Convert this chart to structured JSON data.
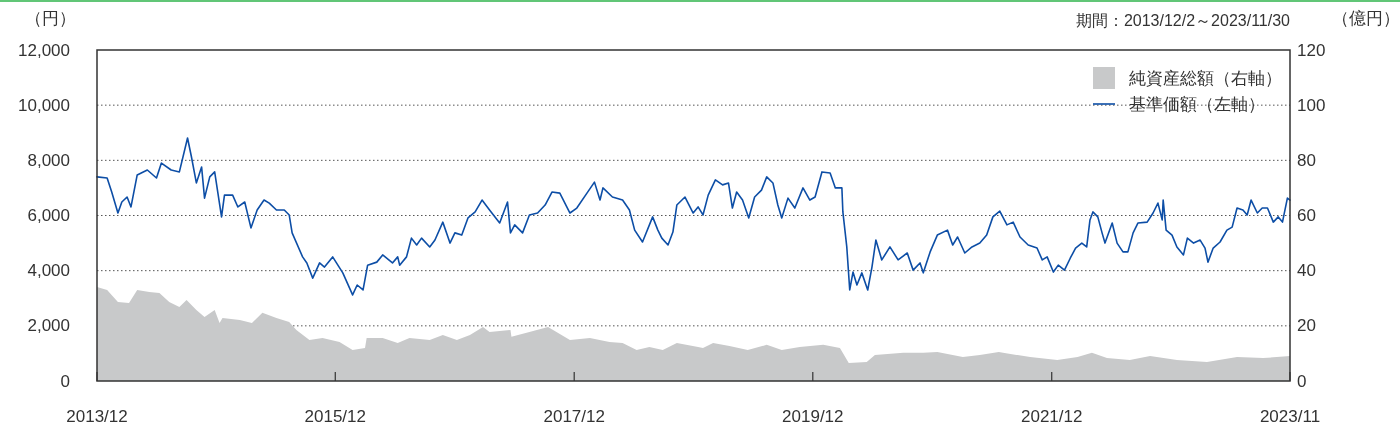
{
  "chart_data": {
    "type": "line",
    "ylabel": "（円）",
    "y2label": "（億円）",
    "annotations": [
      "期間：2013/12/2～2023/11/30"
    ],
    "xlim": [
      "2013-12-02",
      "2023-11-30"
    ],
    "xticks": [
      {
        "value": "2013-12-02",
        "label": "2013/12"
      },
      {
        "value": "2015-12-01",
        "label": "2015/12"
      },
      {
        "value": "2017-12-01",
        "label": "2017/12"
      },
      {
        "value": "2019-12-01",
        "label": "2019/12"
      },
      {
        "value": "2021-12-01",
        "label": "2021/12"
      },
      {
        "value": "2023-11-30",
        "label": "2023/11"
      }
    ],
    "ylim": [
      0,
      12000
    ],
    "yticks": [
      0,
      {
        "value": 2000,
        "label": "2,000"
      },
      {
        "value": 4000,
        "label": "4,000"
      },
      {
        "value": 6000,
        "label": "6,000"
      },
      {
        "value": 8000,
        "label": "8,000"
      },
      {
        "value": 10000,
        "label": "10,000"
      },
      {
        "value": 12000,
        "label": "12,000"
      }
    ],
    "y2lim": [
      0,
      120
    ],
    "y2ticks": [
      0,
      20,
      40,
      60,
      80,
      100,
      120
    ],
    "grid": "y",
    "legend": "top right",
    "series": [
      {
        "name": "純資産総額（右軸）",
        "type": "area",
        "axis": "y2",
        "color": "#c8c9ca",
        "x": [
          "2013-12-02",
          "2014-01-02",
          "2014-02-04",
          "2014-03-10",
          "2014-04-04",
          "2014-05-11",
          "2014-06-11",
          "2014-07-11",
          "2014-08-11",
          "2014-09-02",
          "2014-10-02",
          "2014-10-27",
          "2014-11-27",
          "2014-12-12",
          "2014-12-21",
          "2015-02-12",
          "2015-03-21",
          "2015-04-22",
          "2015-06-04",
          "2015-07-13",
          "2015-08-04",
          "2015-09-13",
          "2015-10-23",
          "2015-12-14",
          "2016-01-23",
          "2016-03-01",
          "2016-03-06",
          "2016-04-24",
          "2016-06-09",
          "2016-07-15",
          "2016-09-15",
          "2016-10-25",
          "2016-12-07",
          "2017-01-16",
          "2017-02-25",
          "2017-03-17",
          "2017-05-20",
          "2017-05-23",
          "2017-07-17",
          "2017-09-12",
          "2017-11-18",
          "2018-01-18",
          "2018-03-19",
          "2018-04-28",
          "2018-06-10",
          "2018-07-19",
          "2018-08-29",
          "2018-10-11",
          "2018-12-15",
          "2018-12-30",
          "2019-01-30",
          "2019-03-21",
          "2019-05-16",
          "2019-07-13",
          "2019-08-28",
          "2019-10-22",
          "2020-01-02",
          "2020-02-22",
          "2020-03-20",
          "2020-05-14",
          "2020-06-08",
          "2020-09-03",
          "2020-11-03",
          "2020-12-16",
          "2021-03-04",
          "2021-04-25",
          "2021-06-22",
          "2021-07-05",
          "2021-09-26",
          "2021-12-18",
          "2022-02-18",
          "2022-04-03",
          "2022-05-19",
          "2022-07-28",
          "2022-09-28",
          "2022-12-19",
          "2023-03-21",
          "2023-06-21",
          "2023-09-09",
          "2023-11-30"
        ],
        "values": [
          34.1,
          33.0,
          28.6,
          28.3,
          33.0,
          32.3,
          31.9,
          28.6,
          26.8,
          29.4,
          25.7,
          23.2,
          25.7,
          21.0,
          22.8,
          22.1,
          21.0,
          24.7,
          22.8,
          21.4,
          18.5,
          14.9,
          15.6,
          14.1,
          11.2,
          12.0,
          15.6,
          15.6,
          13.8,
          15.6,
          14.9,
          16.7,
          14.9,
          16.7,
          19.6,
          17.8,
          18.5,
          16.0,
          17.8,
          19.6,
          14.9,
          15.6,
          14.1,
          13.8,
          11.2,
          12.3,
          11.2,
          13.8,
          12.3,
          12.0,
          13.8,
          12.7,
          11.2,
          13.1,
          11.2,
          12.3,
          13.1,
          12.0,
          6.5,
          6.9,
          9.4,
          10.2,
          10.2,
          10.5,
          8.7,
          9.4,
          10.5,
          10.2,
          8.7,
          7.6,
          8.7,
          10.2,
          8.3,
          7.6,
          9.1,
          7.6,
          6.9,
          8.7,
          8.3,
          9.1
        ]
      },
      {
        "name": "基準価額（左軸）",
        "type": "line",
        "color": "#0d4ea6",
        "x": [
          "2013-12-02",
          "2014-01-02",
          "2014-01-16",
          "2014-02-04",
          "2014-02-16",
          "2014-03-04",
          "2014-03-16",
          "2014-04-04",
          "2014-05-05",
          "2014-06-02",
          "2014-06-17",
          "2014-07-17",
          "2014-08-11",
          "2014-09-05",
          "2014-09-17",
          "2014-10-02",
          "2014-10-18",
          "2014-10-27",
          "2014-11-12",
          "2014-11-27",
          "2014-12-18",
          "2014-12-27",
          "2015-01-21",
          "2015-02-06",
          "2015-02-27",
          "2015-03-18",
          "2015-04-06",
          "2015-04-27",
          "2015-05-13",
          "2015-06-04",
          "2015-06-28",
          "2015-07-13",
          "2015-07-22",
          "2015-08-23",
          "2015-09-05",
          "2015-09-23",
          "2015-10-14",
          "2015-10-29",
          "2015-11-23",
          "2015-12-24",
          "2016-01-23",
          "2016-02-06",
          "2016-02-24",
          "2016-03-09",
          "2016-04-06",
          "2016-04-24",
          "2016-05-24",
          "2016-06-09",
          "2016-06-15",
          "2016-07-06",
          "2016-07-21",
          "2016-08-06",
          "2016-08-21",
          "2016-09-15",
          "2016-10-01",
          "2016-10-25",
          "2016-11-16",
          "2016-12-01",
          "2016-12-22",
          "2017-01-10",
          "2017-02-01",
          "2017-02-22",
          "2017-03-17",
          "2017-04-17",
          "2017-05-11",
          "2017-05-20",
          "2017-06-02",
          "2017-06-26",
          "2017-07-17",
          "2017-08-11",
          "2017-09-03",
          "2017-09-24",
          "2017-10-18",
          "2017-11-18",
          "2017-12-09",
          "2018-01-09",
          "2018-02-01",
          "2018-02-18",
          "2018-02-27",
          "2018-03-28",
          "2018-04-28",
          "2018-05-19",
          "2018-06-04",
          "2018-06-28",
          "2018-07-29",
          "2018-08-14",
          "2018-08-26",
          "2018-09-14",
          "2018-09-29",
          "2018-10-11",
          "2018-11-05",
          "2018-11-30",
          "2018-12-15",
          "2018-12-30",
          "2019-01-15",
          "2019-02-06",
          "2019-02-28",
          "2019-03-18",
          "2019-03-30",
          "2019-04-12",
          "2019-04-30",
          "2019-05-19",
          "2019-06-06",
          "2019-06-27",
          "2019-07-13",
          "2019-08-01",
          "2019-08-16",
          "2019-08-28",
          "2019-09-16",
          "2019-10-07",
          "2019-11-01",
          "2019-11-22",
          "2019-12-08",
          "2019-12-29",
          "2020-01-23",
          "2020-02-08",
          "2020-02-28",
          "2020-03-02",
          "2020-03-14",
          "2020-03-23",
          "2020-04-02",
          "2020-04-14",
          "2020-04-29",
          "2020-05-17",
          "2020-05-30",
          "2020-06-11",
          "2020-06-29",
          "2020-07-24",
          "2020-08-18",
          "2020-09-15",
          "2020-10-03",
          "2020-10-24",
          "2020-11-03",
          "2020-11-24",
          "2020-12-16",
          "2021-01-16",
          "2021-02-01",
          "2021-02-16",
          "2021-03-10",
          "2021-04-01",
          "2021-04-25",
          "2021-05-16",
          "2021-06-04",
          "2021-06-25",
          "2021-07-17",
          "2021-08-05",
          "2021-08-26",
          "2021-09-20",
          "2021-10-17",
          "2021-11-02",
          "2021-11-17",
          "2021-12-06",
          "2021-12-21",
          "2022-01-09",
          "2022-01-27",
          "2022-02-12",
          "2022-03-03",
          "2022-03-18",
          "2022-03-28",
          "2022-04-06",
          "2022-04-21",
          "2022-05-04",
          "2022-05-13",
          "2022-06-04",
          "2022-06-19",
          "2022-07-07",
          "2022-07-22",
          "2022-08-07",
          "2022-08-22",
          "2022-09-19",
          "2022-10-07",
          "2022-10-22",
          "2022-11-04",
          "2022-11-07",
          "2022-11-16",
          "2022-12-04",
          "2022-12-19",
          "2023-01-08",
          "2023-01-20",
          "2023-02-08",
          "2023-02-28",
          "2023-03-15",
          "2023-03-24",
          "2023-04-09",
          "2023-04-30",
          "2023-05-21",
          "2023-06-06",
          "2023-06-21",
          "2023-07-09",
          "2023-07-22",
          "2023-08-03",
          "2023-08-22",
          "2023-09-06",
          "2023-09-22",
          "2023-10-10",
          "2023-10-25",
          "2023-11-07",
          "2023-11-22",
          "2023-11-30"
        ],
        "values": [
          7400,
          7360,
          6850,
          6090,
          6490,
          6670,
          6310,
          7470,
          7650,
          7360,
          7900,
          7650,
          7580,
          8810,
          8120,
          7180,
          7760,
          6630,
          7400,
          7580,
          5950,
          6740,
          6740,
          6310,
          6490,
          5550,
          6200,
          6560,
          6450,
          6200,
          6200,
          6020,
          5370,
          4500,
          4280,
          3730,
          4280,
          4130,
          4500,
          3920,
          3120,
          3480,
          3300,
          4200,
          4310,
          4570,
          4280,
          4500,
          4200,
          4500,
          5180,
          4930,
          5180,
          4860,
          5110,
          5760,
          5000,
          5370,
          5290,
          5910,
          6130,
          6560,
          6200,
          5730,
          6490,
          5370,
          5660,
          5370,
          6020,
          6090,
          6380,
          6850,
          6810,
          6090,
          6270,
          6810,
          7210,
          6560,
          7000,
          6670,
          6560,
          6200,
          5470,
          5040,
          5950,
          5470,
          5180,
          4930,
          5400,
          6380,
          6670,
          6090,
          6310,
          6020,
          6740,
          7290,
          7110,
          7180,
          6270,
          6850,
          6560,
          5910,
          6670,
          6920,
          7400,
          7180,
          6380,
          5910,
          6630,
          6270,
          7000,
          6560,
          6670,
          7580,
          7540,
          7000,
          7000,
          6130,
          4860,
          3300,
          3950,
          3480,
          3920,
          3300,
          4130,
          5110,
          4390,
          4860,
          4390,
          4640,
          4020,
          4280,
          3920,
          4680,
          5290,
          5470,
          4930,
          5220,
          4640,
          4860,
          5000,
          5290,
          5950,
          6160,
          5660,
          5760,
          5220,
          4930,
          4820,
          4390,
          4500,
          3950,
          4200,
          4020,
          4460,
          4820,
          5000,
          4860,
          5840,
          6130,
          5950,
          5370,
          5000,
          5730,
          5000,
          4680,
          4680,
          5370,
          5730,
          5760,
          6090,
          6450,
          5840,
          6560,
          5470,
          5290,
          4860,
          4570,
          5180,
          5000,
          5110,
          4820,
          4310,
          4820,
          5040,
          5470,
          5580,
          6270,
          6200,
          6020,
          6560,
          6090,
          6270,
          6270,
          5760,
          5950,
          5760,
          6630,
          6560
        ]
      }
    ]
  }
}
